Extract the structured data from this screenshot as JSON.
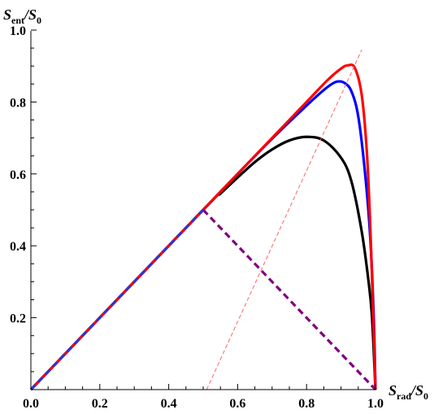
{
  "chart_data": {
    "type": "line",
    "title": "",
    "xlabel": {
      "main": "S",
      "sub": "rad",
      "rest": "/S",
      "sub2": "0"
    },
    "ylabel": {
      "main": "S",
      "sub": "ent",
      "rest": "/S",
      "sub2": "0"
    },
    "xlim": [
      0,
      1
    ],
    "ylim": [
      0,
      1
    ],
    "x_ticks": [
      {
        "value": 0.0,
        "label": "0.0"
      },
      {
        "value": 0.2,
        "label": "0.2"
      },
      {
        "value": 0.4,
        "label": "0.4"
      },
      {
        "value": 0.6,
        "label": "0.6"
      },
      {
        "value": 0.8,
        "label": "0.8"
      },
      {
        "value": 1.0,
        "label": "1.0"
      }
    ],
    "y_ticks": [
      {
        "value": 0.2,
        "label": "0.2"
      },
      {
        "value": 0.4,
        "label": "0.4"
      },
      {
        "value": 0.6,
        "label": "0.6"
      },
      {
        "value": 0.8,
        "label": "0.8"
      },
      {
        "value": 1.0,
        "label": "1.0"
      }
    ],
    "grid": false,
    "series": [
      {
        "color": "#ff0000",
        "style": "solid",
        "x": [
          0,
          0.5,
          0.6,
          0.7,
          0.8,
          0.86,
          0.9,
          0.92,
          0.94,
          0.96,
          0.975,
          0.985,
          0.993,
          1.0
        ],
        "y": [
          0,
          0.5,
          0.6,
          0.7,
          0.8,
          0.86,
          0.893,
          0.902,
          0.895,
          0.82,
          0.66,
          0.45,
          0.22,
          0
        ]
      },
      {
        "color": "#0000ff",
        "style": "solid",
        "x": [
          0,
          0.5,
          0.6,
          0.7,
          0.78,
          0.84,
          0.87,
          0.89,
          0.91,
          0.93,
          0.95,
          0.97,
          0.985,
          0.995,
          1.0
        ],
        "y": [
          0,
          0.5,
          0.6,
          0.698,
          0.772,
          0.825,
          0.848,
          0.857,
          0.853,
          0.83,
          0.76,
          0.6,
          0.42,
          0.2,
          0
        ]
      },
      {
        "color": "#000000",
        "style": "solid",
        "x": [
          0,
          0.5,
          0.55,
          0.6,
          0.65,
          0.7,
          0.75,
          0.8,
          0.85,
          0.9,
          0.93,
          0.96,
          0.98,
          0.99,
          1.0
        ],
        "y": [
          0,
          0.5,
          0.545,
          0.59,
          0.633,
          0.668,
          0.693,
          0.703,
          0.693,
          0.645,
          0.58,
          0.44,
          0.3,
          0.2,
          0
        ]
      },
      {
        "color": "#3333cc",
        "style": "dashed",
        "x": [
          0,
          0.5
        ],
        "y": [
          0,
          0.5
        ]
      },
      {
        "color": "#800080",
        "style": "dashed",
        "x": [
          0.5,
          1.0
        ],
        "y": [
          0.5,
          0
        ]
      },
      {
        "color": "#ff6666",
        "style": "dashed-thin",
        "x": [
          0.51,
          0.96
        ],
        "y": [
          0,
          0.945
        ]
      }
    ]
  }
}
